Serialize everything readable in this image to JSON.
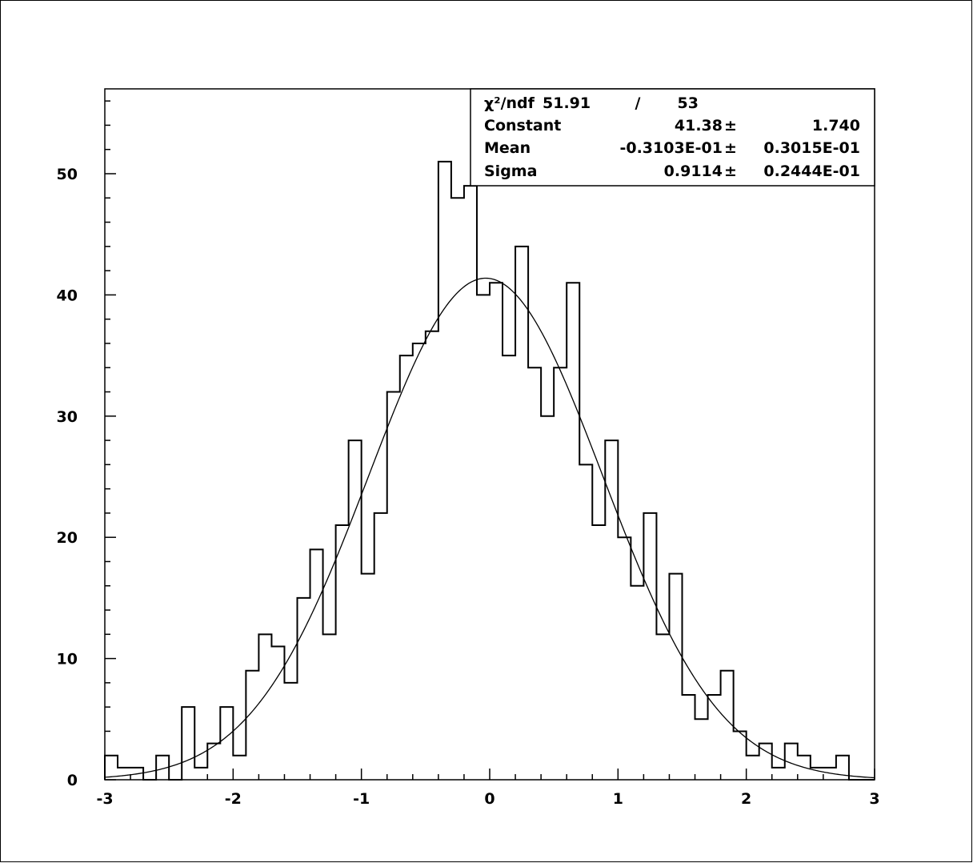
{
  "chart_data": {
    "type": "bar",
    "title": "",
    "xlabel": "",
    "ylabel": "",
    "xlim": [
      -3,
      3
    ],
    "ylim": [
      0,
      57
    ],
    "bin_width": 0.1,
    "bin_edges_start": -3.0,
    "values": [
      2,
      1,
      1,
      0,
      2,
      0,
      6,
      1,
      3,
      6,
      2,
      9,
      12,
      11,
      8,
      15,
      19,
      12,
      21,
      28,
      17,
      22,
      32,
      35,
      36,
      37,
      51,
      48,
      49,
      40,
      41,
      35,
      44,
      34,
      30,
      34,
      41,
      26,
      21,
      28,
      20,
      16,
      22,
      12,
      17,
      7,
      5,
      7,
      9,
      4,
      2,
      3,
      1,
      3,
      2,
      1,
      1,
      2,
      0,
      0
    ],
    "x_ticks": [
      -3,
      -2,
      -1,
      0,
      1,
      2,
      3
    ],
    "x_tick_labels": [
      "-3",
      "-2",
      "-1",
      "0",
      "1",
      "2",
      "3"
    ],
    "y_ticks": [
      0,
      10,
      20,
      30,
      40,
      50
    ],
    "y_tick_labels": [
      "0",
      "10",
      "20",
      "30",
      "40",
      "50"
    ],
    "fit": {
      "function": "gaussian",
      "constant": 41.38,
      "mean": -0.03103,
      "sigma": 0.9114
    },
    "stats_box": {
      "position": "top-right",
      "rows": [
        {
          "label": "χ²/ndf",
          "value": "51.91",
          "sep": "/",
          "error": "53"
        },
        {
          "label": "Constant",
          "value": "41.38",
          "sep": "±",
          "error": "1.740"
        },
        {
          "label": "Mean",
          "value": "-0.3103E-01",
          "sep": "±",
          "error": "0.3015E-01"
        },
        {
          "label": "Sigma",
          "value": "0.9114",
          "sep": "±",
          "error": "0.2444E-01"
        }
      ]
    }
  }
}
